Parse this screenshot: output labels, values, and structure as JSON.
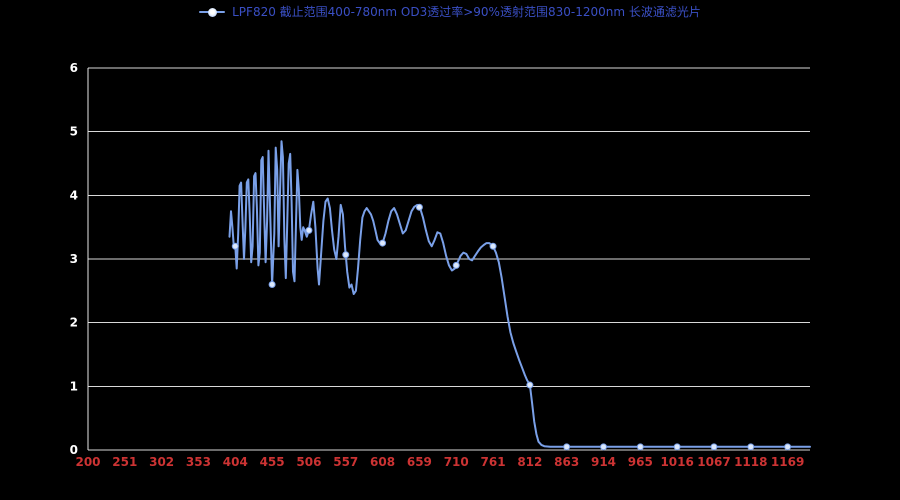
{
  "chart_data": {
    "type": "line",
    "title": "LPF820 截止范围400-780nm OD3透过率>90%透射范围830-1200nm 长波通滤光片",
    "xlabel": "",
    "ylabel": "",
    "xlim": [
      200,
      1200
    ],
    "ylim": [
      0,
      6
    ],
    "grid": true,
    "legend_position": "top-center",
    "x_ticks": [
      200,
      251,
      302,
      353,
      404,
      455,
      506,
      557,
      608,
      659,
      710,
      761,
      812,
      863,
      914,
      965,
      1016,
      1067,
      1118,
      1169
    ],
    "y_ticks": [
      0,
      1,
      2,
      3,
      4,
      5,
      6
    ],
    "colors": {
      "background": "#000000",
      "line": "#7aa0e8",
      "marker_fill": "#dce8fb",
      "marker_stroke": "#7aa0e8",
      "grid": "#d9d9d9",
      "axis": "#e8e8e8",
      "x_label": "#cc3333",
      "y_label": "#ffffff",
      "title": "#3a4fc4"
    },
    "marker_x": [
      404,
      455,
      506,
      557,
      608,
      659,
      710,
      761,
      812,
      863,
      914,
      965,
      1016,
      1067,
      1118,
      1169
    ],
    "series": [
      {
        "name": "LPF820 长波通滤光片",
        "points": [
          [
            396,
            3.35
          ],
          [
            398,
            3.75
          ],
          [
            400,
            3.5
          ],
          [
            402,
            3.2
          ],
          [
            404,
            3.2
          ],
          [
            406,
            2.85
          ],
          [
            408,
            3.4
          ],
          [
            410,
            4.15
          ],
          [
            412,
            4.2
          ],
          [
            414,
            3.6
          ],
          [
            416,
            3.0
          ],
          [
            418,
            3.5
          ],
          [
            420,
            4.2
          ],
          [
            422,
            4.25
          ],
          [
            424,
            3.7
          ],
          [
            426,
            2.95
          ],
          [
            428,
            3.2
          ],
          [
            430,
            4.3
          ],
          [
            432,
            4.35
          ],
          [
            434,
            3.8
          ],
          [
            436,
            2.9
          ],
          [
            438,
            3.1
          ],
          [
            440,
            4.55
          ],
          [
            442,
            4.6
          ],
          [
            444,
            3.7
          ],
          [
            446,
            2.95
          ],
          [
            448,
            3.6
          ],
          [
            450,
            4.7
          ],
          [
            452,
            3.9
          ],
          [
            455,
            2.6
          ],
          [
            458,
            3.4
          ],
          [
            460,
            4.75
          ],
          [
            462,
            4.4
          ],
          [
            464,
            3.2
          ],
          [
            466,
            4.1
          ],
          [
            468,
            4.85
          ],
          [
            470,
            4.6
          ],
          [
            472,
            3.3
          ],
          [
            474,
            2.7
          ],
          [
            476,
            3.6
          ],
          [
            478,
            4.5
          ],
          [
            480,
            4.65
          ],
          [
            482,
            3.9
          ],
          [
            484,
            2.8
          ],
          [
            486,
            2.65
          ],
          [
            488,
            3.5
          ],
          [
            490,
            4.4
          ],
          [
            492,
            4.1
          ],
          [
            494,
            3.5
          ],
          [
            496,
            3.3
          ],
          [
            498,
            3.5
          ],
          [
            500,
            3.45
          ],
          [
            503,
            3.35
          ],
          [
            506,
            3.45
          ],
          [
            509,
            3.7
          ],
          [
            512,
            3.9
          ],
          [
            515,
            3.5
          ],
          [
            518,
            2.85
          ],
          [
            520,
            2.6
          ],
          [
            523,
            3.1
          ],
          [
            526,
            3.6
          ],
          [
            529,
            3.9
          ],
          [
            532,
            3.95
          ],
          [
            535,
            3.8
          ],
          [
            538,
            3.45
          ],
          [
            541,
            3.15
          ],
          [
            544,
            3.0
          ],
          [
            547,
            3.35
          ],
          [
            550,
            3.85
          ],
          [
            553,
            3.7
          ],
          [
            556,
            3.2
          ],
          [
            559,
            2.8
          ],
          [
            562,
            2.55
          ],
          [
            565,
            2.6
          ],
          [
            568,
            2.45
          ],
          [
            571,
            2.5
          ],
          [
            574,
            2.85
          ],
          [
            577,
            3.3
          ],
          [
            580,
            3.65
          ],
          [
            583,
            3.75
          ],
          [
            586,
            3.8
          ],
          [
            589,
            3.75
          ],
          [
            592,
            3.7
          ],
          [
            595,
            3.6
          ],
          [
            598,
            3.45
          ],
          [
            601,
            3.3
          ],
          [
            604,
            3.25
          ],
          [
            608,
            3.25
          ],
          [
            612,
            3.4
          ],
          [
            616,
            3.6
          ],
          [
            620,
            3.75
          ],
          [
            624,
            3.8
          ],
          [
            628,
            3.7
          ],
          [
            632,
            3.55
          ],
          [
            636,
            3.4
          ],
          [
            640,
            3.45
          ],
          [
            644,
            3.6
          ],
          [
            648,
            3.75
          ],
          [
            652,
            3.82
          ],
          [
            656,
            3.85
          ],
          [
            660,
            3.8
          ],
          [
            664,
            3.65
          ],
          [
            668,
            3.45
          ],
          [
            672,
            3.28
          ],
          [
            676,
            3.2
          ],
          [
            680,
            3.3
          ],
          [
            684,
            3.42
          ],
          [
            688,
            3.4
          ],
          [
            692,
            3.25
          ],
          [
            696,
            3.05
          ],
          [
            700,
            2.9
          ],
          [
            704,
            2.82
          ],
          [
            708,
            2.85
          ],
          [
            712,
            2.95
          ],
          [
            716,
            3.05
          ],
          [
            720,
            3.1
          ],
          [
            724,
            3.08
          ],
          [
            728,
            3.0
          ],
          [
            732,
            2.98
          ],
          [
            736,
            3.05
          ],
          [
            740,
            3.12
          ],
          [
            744,
            3.18
          ],
          [
            748,
            3.22
          ],
          [
            752,
            3.25
          ],
          [
            756,
            3.25
          ],
          [
            761,
            3.2
          ],
          [
            765,
            3.1
          ],
          [
            769,
            2.95
          ],
          [
            773,
            2.7
          ],
          [
            777,
            2.4
          ],
          [
            781,
            2.1
          ],
          [
            785,
            1.85
          ],
          [
            789,
            1.68
          ],
          [
            793,
            1.55
          ],
          [
            797,
            1.42
          ],
          [
            801,
            1.3
          ],
          [
            805,
            1.18
          ],
          [
            808,
            1.1
          ],
          [
            812,
            1.02
          ],
          [
            815,
            0.75
          ],
          [
            818,
            0.45
          ],
          [
            821,
            0.25
          ],
          [
            824,
            0.13
          ],
          [
            828,
            0.08
          ],
          [
            832,
            0.06
          ],
          [
            840,
            0.05
          ],
          [
            852,
            0.05
          ],
          [
            863,
            0.05
          ],
          [
            876,
            0.05
          ],
          [
            890,
            0.05
          ],
          [
            902,
            0.05
          ],
          [
            914,
            0.05
          ],
          [
            928,
            0.05
          ],
          [
            940,
            0.05
          ],
          [
            952,
            0.05
          ],
          [
            965,
            0.05
          ],
          [
            978,
            0.05
          ],
          [
            990,
            0.05
          ],
          [
            1003,
            0.05
          ],
          [
            1016,
            0.05
          ],
          [
            1028,
            0.05
          ],
          [
            1042,
            0.05
          ],
          [
            1055,
            0.05
          ],
          [
            1067,
            0.05
          ],
          [
            1080,
            0.05
          ],
          [
            1092,
            0.05
          ],
          [
            1105,
            0.05
          ],
          [
            1118,
            0.05
          ],
          [
            1130,
            0.05
          ],
          [
            1143,
            0.05
          ],
          [
            1156,
            0.05
          ],
          [
            1169,
            0.05
          ],
          [
            1182,
            0.05
          ],
          [
            1195,
            0.05
          ],
          [
            1200,
            0.05
          ]
        ]
      }
    ]
  }
}
